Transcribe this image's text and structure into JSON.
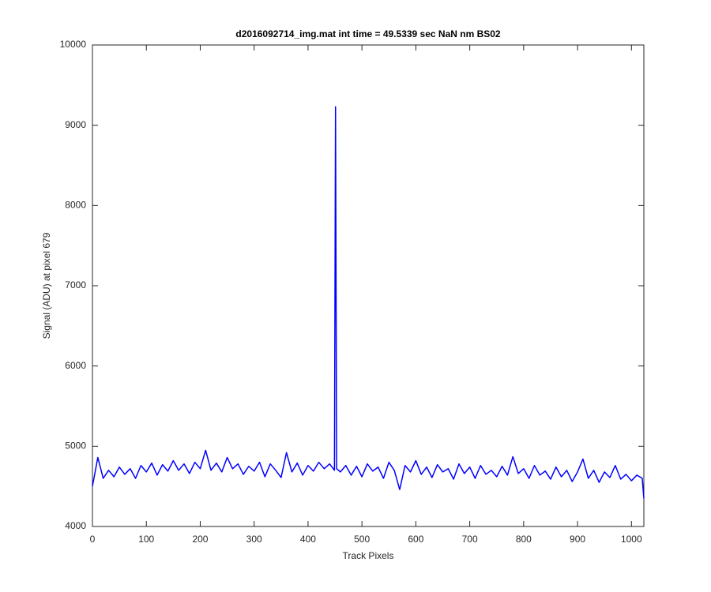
{
  "chart_data": {
    "type": "line",
    "title": "d2016092714_img.mat int time = 49.5339 sec  NaN nm BS02",
    "x_label": "Track Pixels",
    "y_label": "Signal (ADU) at pixel 679",
    "xlim": [
      0,
      1023
    ],
    "ylim": [
      4000,
      10000
    ],
    "xticks": [
      0,
      100,
      200,
      300,
      400,
      500,
      600,
      700,
      800,
      900,
      1000
    ],
    "yticks": [
      4000,
      5000,
      6000,
      7000,
      8000,
      9000,
      10000
    ],
    "grid": false,
    "x": [
      0,
      10,
      20,
      30,
      40,
      50,
      60,
      70,
      80,
      90,
      100,
      110,
      120,
      130,
      140,
      150,
      160,
      170,
      180,
      190,
      200,
      210,
      220,
      230,
      240,
      250,
      260,
      270,
      280,
      290,
      300,
      310,
      320,
      330,
      340,
      350,
      360,
      370,
      380,
      390,
      400,
      410,
      420,
      430,
      440,
      449,
      451,
      453,
      460,
      470,
      480,
      490,
      500,
      510,
      520,
      530,
      540,
      550,
      560,
      570,
      580,
      590,
      600,
      610,
      620,
      630,
      640,
      650,
      660,
      670,
      680,
      690,
      700,
      710,
      720,
      730,
      740,
      750,
      760,
      770,
      780,
      790,
      800,
      810,
      820,
      830,
      840,
      850,
      860,
      870,
      880,
      890,
      900,
      910,
      920,
      930,
      940,
      950,
      960,
      970,
      980,
      990,
      1000,
      1010,
      1020,
      1023
    ],
    "series": [
      {
        "name": "signal",
        "color": "#0000ff",
        "values": [
          4500,
          4860,
          4600,
          4700,
          4620,
          4740,
          4650,
          4720,
          4600,
          4760,
          4680,
          4790,
          4640,
          4770,
          4690,
          4820,
          4700,
          4780,
          4660,
          4800,
          4720,
          4950,
          4700,
          4790,
          4680,
          4860,
          4720,
          4780,
          4650,
          4750,
          4690,
          4800,
          4620,
          4780,
          4700,
          4610,
          4920,
          4680,
          4790,
          4640,
          4760,
          4690,
          4800,
          4720,
          4780,
          4700,
          9230,
          4720,
          4680,
          4760,
          4640,
          4750,
          4620,
          4780,
          4690,
          4740,
          4600,
          4800,
          4700,
          4460,
          4760,
          4680,
          4820,
          4650,
          4740,
          4610,
          4770,
          4680,
          4720,
          4590,
          4780,
          4660,
          4740,
          4600,
          4760,
          4650,
          4700,
          4620,
          4750,
          4640,
          4870,
          4660,
          4720,
          4600,
          4760,
          4640,
          4690,
          4590,
          4740,
          4620,
          4700,
          4560,
          4680,
          4840,
          4600,
          4700,
          4550,
          4680,
          4610,
          4760,
          4590,
          4650,
          4570,
          4640,
          4600,
          4350
        ]
      }
    ]
  }
}
